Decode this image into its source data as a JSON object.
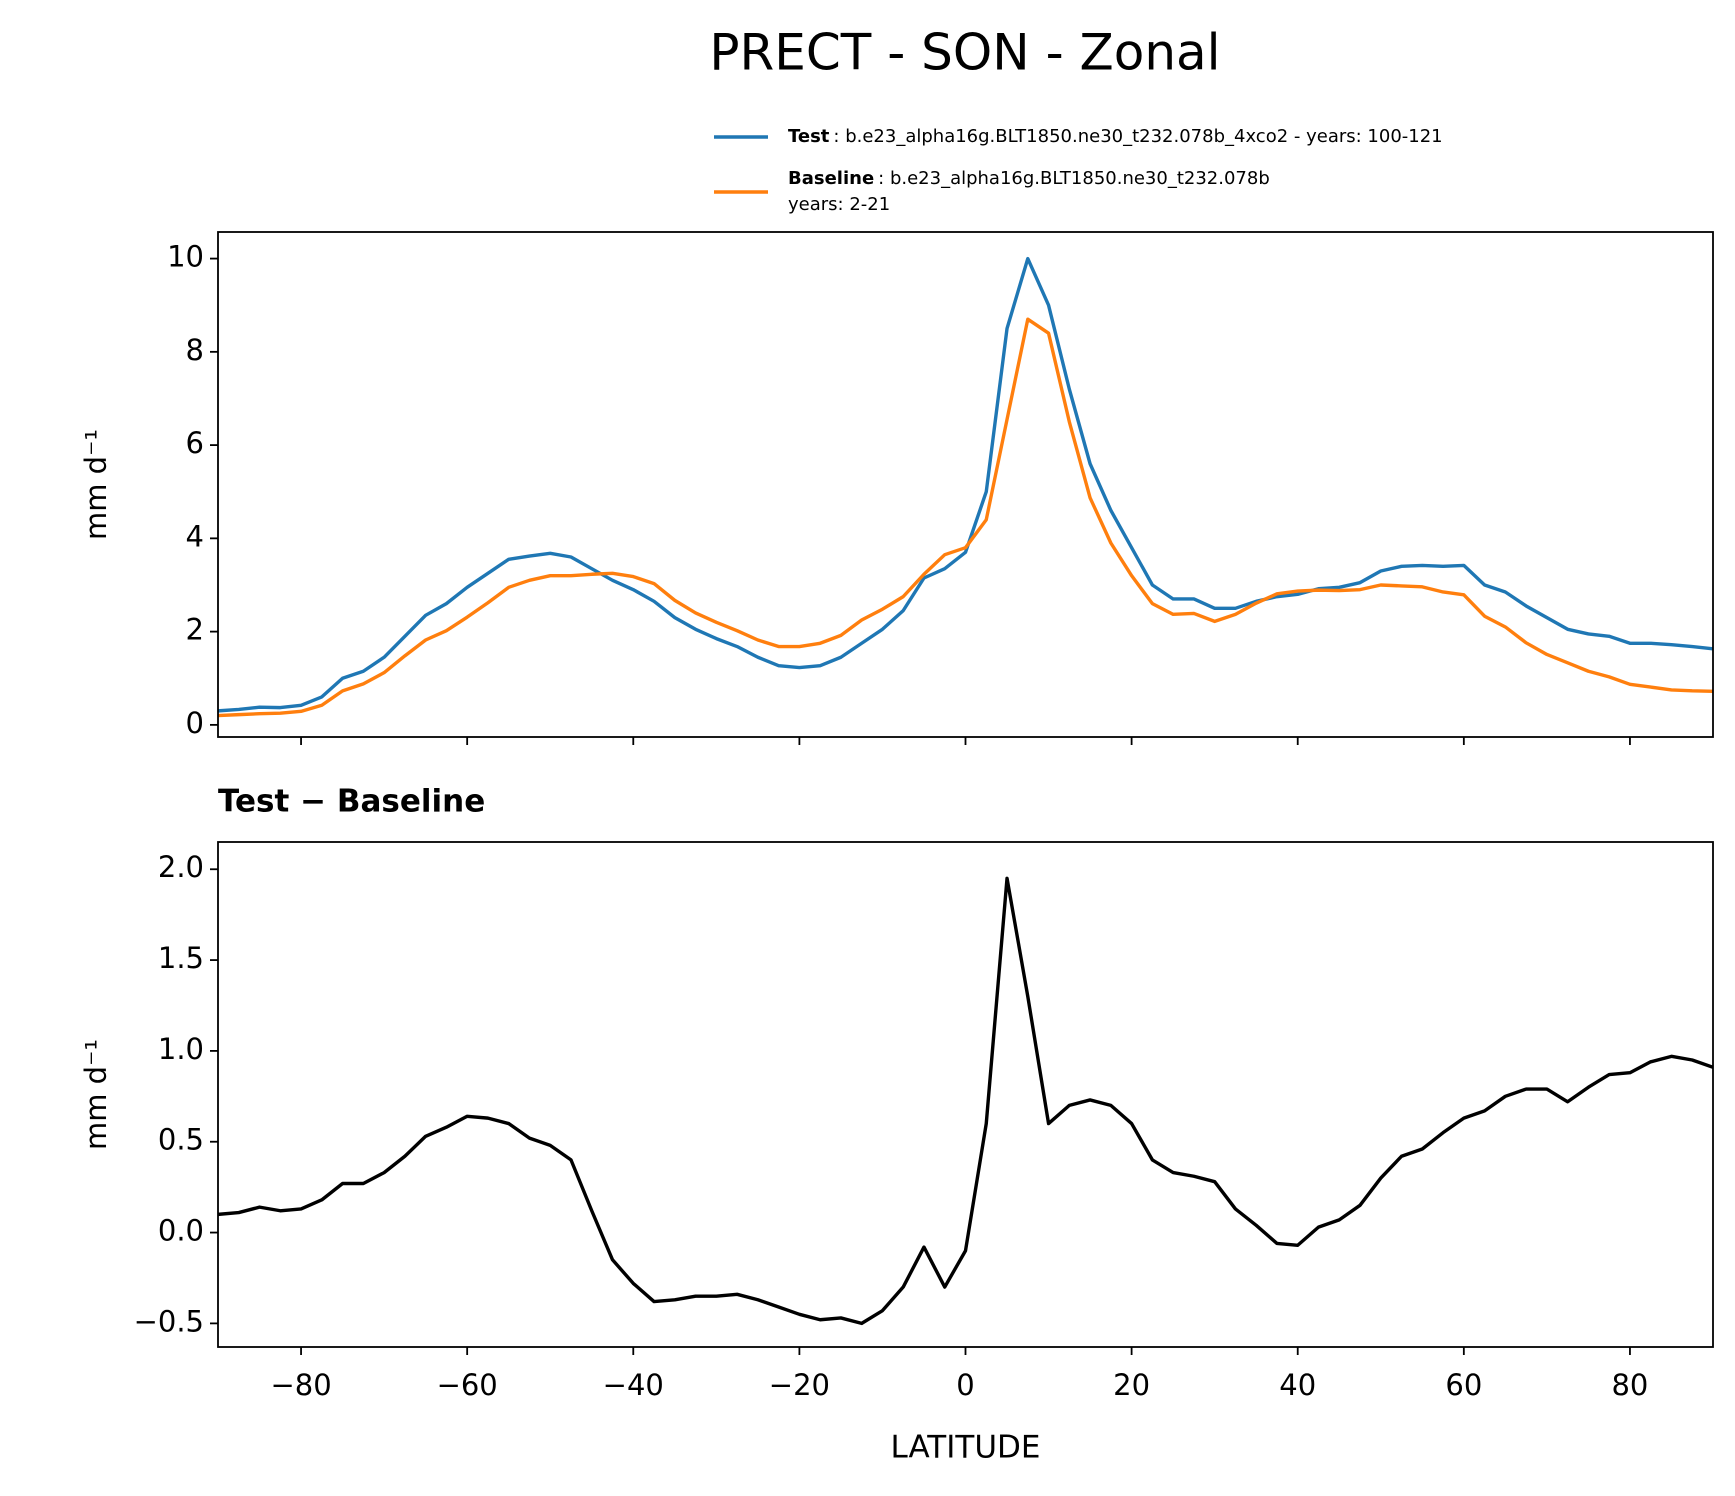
{
  "chart_data": [
    {
      "type": "line",
      "title": "PRECT - SON - Zonal",
      "ylabel": "mm d⁻¹",
      "x": [
        -90,
        -87.5,
        -85,
        -82.5,
        -80,
        -77.5,
        -75,
        -72.5,
        -70,
        -67.5,
        -65,
        -62.5,
        -60,
        -57.5,
        -55,
        -52.5,
        -50,
        -47.5,
        -45,
        -42.5,
        -40,
        -37.5,
        -35,
        -32.5,
        -30,
        -27.5,
        -25,
        -22.5,
        -20,
        -17.5,
        -15,
        -12.5,
        -10,
        -7.5,
        -5,
        -2.5,
        0,
        2.5,
        5,
        7.5,
        10,
        12.5,
        15,
        17.5,
        20,
        22.5,
        25,
        27.5,
        30,
        32.5,
        35,
        37.5,
        40,
        42.5,
        45,
        47.5,
        50,
        52.5,
        55,
        57.5,
        60,
        62.5,
        65,
        67.5,
        70,
        72.5,
        75,
        77.5,
        80,
        82.5,
        85,
        87.5,
        90
      ],
      "series": [
        {
          "name": "Test",
          "detail": ": b.e23_alpha16g.BLT1850.ne30_t232.078b_4xco2 - years: 100-121",
          "color": "#1f77b4",
          "values": [
            0.3,
            0.33,
            0.38,
            0.37,
            0.42,
            0.6,
            1.0,
            1.15,
            1.45,
            1.9,
            2.35,
            2.6,
            2.95,
            3.25,
            3.55,
            3.62,
            3.68,
            3.6,
            3.35,
            3.1,
            2.9,
            2.65,
            2.3,
            2.05,
            1.85,
            1.68,
            1.45,
            1.27,
            1.23,
            1.27,
            1.45,
            1.75,
            2.05,
            2.45,
            3.15,
            3.35,
            3.7,
            5.0,
            8.5,
            10.0,
            9.0,
            7.2,
            5.6,
            4.6,
            3.8,
            3.0,
            2.7,
            2.7,
            2.5,
            2.5,
            2.65,
            2.75,
            2.8,
            2.92,
            2.95,
            3.05,
            3.3,
            3.4,
            3.42,
            3.4,
            3.42,
            3.0,
            2.85,
            2.55,
            2.3,
            2.05,
            1.95,
            1.9,
            1.75,
            1.75,
            1.72,
            1.68,
            1.63
          ]
        },
        {
          "name": "Baseline",
          "detail": ": b.e23_alpha16g.BLT1850.ne30_t232.078b",
          "detail2": "years: 2-21",
          "color": "#ff7f0e",
          "values": [
            0.2,
            0.22,
            0.24,
            0.25,
            0.29,
            0.42,
            0.73,
            0.88,
            1.12,
            1.48,
            1.82,
            2.02,
            2.31,
            2.62,
            2.95,
            3.1,
            3.2,
            3.2,
            3.23,
            3.25,
            3.18,
            3.03,
            2.67,
            2.4,
            2.2,
            2.02,
            1.82,
            1.68,
            1.68,
            1.75,
            1.92,
            2.25,
            2.48,
            2.75,
            3.23,
            3.65,
            3.8,
            4.4,
            6.55,
            8.7,
            8.4,
            6.5,
            4.87,
            3.9,
            3.2,
            2.6,
            2.37,
            2.39,
            2.22,
            2.37,
            2.61,
            2.81,
            2.87,
            2.89,
            2.88,
            2.9,
            3.0,
            2.98,
            2.96,
            2.85,
            2.79,
            2.33,
            2.1,
            1.76,
            1.51,
            1.33,
            1.15,
            1.03,
            0.87,
            0.81,
            0.75,
            0.73,
            0.72
          ]
        }
      ],
      "xlim": [
        -90,
        90
      ],
      "xticks": [
        -80,
        -60,
        -40,
        -20,
        0,
        20,
        40,
        60,
        80
      ],
      "ylim": [
        -0.26,
        10.57
      ],
      "yticks": [
        0,
        2,
        4,
        6,
        8,
        10
      ]
    },
    {
      "type": "line",
      "title": "Test − Baseline",
      "ylabel": "mm d⁻¹",
      "xlabel": "LATITUDE",
      "x": [
        -90,
        -87.5,
        -85,
        -82.5,
        -80,
        -77.5,
        -75,
        -72.5,
        -70,
        -67.5,
        -65,
        -62.5,
        -60,
        -57.5,
        -55,
        -52.5,
        -50,
        -47.5,
        -45,
        -42.5,
        -40,
        -37.5,
        -35,
        -32.5,
        -30,
        -27.5,
        -25,
        -22.5,
        -20,
        -17.5,
        -15,
        -12.5,
        -10,
        -7.5,
        -5,
        -2.5,
        0,
        2.5,
        5,
        7.5,
        10,
        12.5,
        15,
        17.5,
        20,
        22.5,
        25,
        27.5,
        30,
        32.5,
        35,
        37.5,
        40,
        42.5,
        45,
        47.5,
        50,
        52.5,
        55,
        57.5,
        60,
        62.5,
        65,
        67.5,
        70,
        72.5,
        75,
        77.5,
        80,
        82.5,
        85,
        87.5,
        90
      ],
      "series": [
        {
          "color": "#000000",
          "values": [
            0.1,
            0.11,
            0.14,
            0.12,
            0.13,
            0.18,
            0.27,
            0.27,
            0.33,
            0.42,
            0.53,
            0.58,
            0.64,
            0.63,
            0.6,
            0.52,
            0.48,
            0.4,
            0.12,
            -0.15,
            -0.28,
            -0.38,
            -0.37,
            -0.35,
            -0.35,
            -0.34,
            -0.37,
            -0.41,
            -0.45,
            -0.48,
            -0.47,
            -0.5,
            -0.43,
            -0.3,
            -0.08,
            -0.3,
            -0.1,
            0.6,
            1.95,
            1.3,
            0.6,
            0.7,
            0.73,
            0.7,
            0.6,
            0.4,
            0.33,
            0.31,
            0.28,
            0.13,
            0.04,
            -0.06,
            -0.07,
            0.03,
            0.07,
            0.15,
            0.3,
            0.42,
            0.46,
            0.55,
            0.63,
            0.67,
            0.75,
            0.79,
            0.79,
            0.72,
            0.8,
            0.87,
            0.88,
            0.94,
            0.97,
            0.95,
            0.91
          ]
        }
      ],
      "xlim": [
        -90,
        90
      ],
      "xticks": [
        {
          "value": -80,
          "label": "−80"
        },
        {
          "value": -60,
          "label": "−60"
        },
        {
          "value": -40,
          "label": "−40"
        },
        {
          "value": -20,
          "label": "−20"
        },
        0,
        20,
        40,
        60,
        80
      ],
      "ylim": [
        -0.63,
        2.15
      ],
      "yticks": [
        {
          "value": -0.5,
          "label": "−0.5"
        },
        {
          "value": 0,
          "label": "0.0"
        },
        0.5,
        {
          "value": 1,
          "label": "1.0"
        },
        1.5,
        {
          "value": 2,
          "label": "2.0"
        }
      ]
    }
  ]
}
